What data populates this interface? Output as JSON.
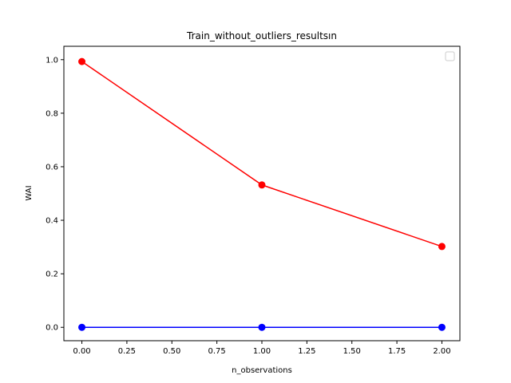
{
  "chart_data": {
    "type": "line",
    "title": "Train_without_outliers_resultsın",
    "xlabel": "n_observations",
    "ylabel": "WAI",
    "x": [
      0,
      1,
      2
    ],
    "xlim": [
      -0.1,
      2.1
    ],
    "ylim": [
      -0.05,
      1.05
    ],
    "xticks": [
      "0.00",
      "0.25",
      "0.50",
      "0.75",
      "1.00",
      "1.25",
      "1.50",
      "1.75",
      "2.00"
    ],
    "xtick_values": [
      0,
      0.25,
      0.5,
      0.75,
      1.0,
      1.25,
      1.5,
      1.75,
      2.0
    ],
    "yticks": [
      "0.0",
      "0.2",
      "0.4",
      "0.6",
      "0.8",
      "1.0"
    ],
    "ytick_values": [
      0,
      0.2,
      0.4,
      0.6,
      0.8,
      1.0
    ],
    "grid": false,
    "legend": "upper right, empty",
    "series": [
      {
        "color": "#ff0000",
        "marker": "circle",
        "values": [
          0.993,
          0.532,
          0.302
        ]
      },
      {
        "color": "#0000ff",
        "marker": "circle",
        "values": [
          0.0,
          0.0,
          0.0
        ]
      }
    ]
  }
}
